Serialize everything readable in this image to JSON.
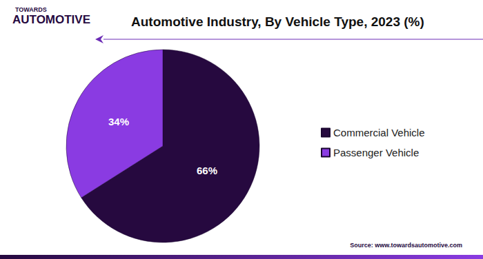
{
  "chart_data": {
    "type": "pie",
    "title": "Automotive Industry, By Vehicle Type, 2023 (%)",
    "categories": [
      "Commercial Vehicle",
      "Passenger Vehicle"
    ],
    "values": [
      66,
      34
    ],
    "value_labels": [
      "66%",
      "34%"
    ],
    "colors": [
      "#26093f",
      "#8a3be2"
    ],
    "data_labels": true,
    "legend": "right",
    "annotations": [
      "TOWARDS",
      "AUTOMOTIVE",
      "Source: www.towardsautomotive.com"
    ]
  }
}
